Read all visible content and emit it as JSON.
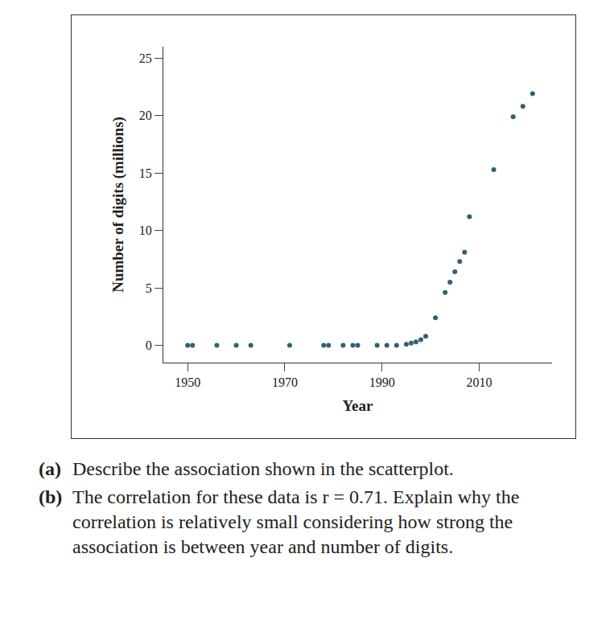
{
  "chart_data": {
    "type": "scatter",
    "xlabel": "Year",
    "ylabel": "Number of digits (millions)",
    "x": [
      1950,
      1951,
      1956,
      1960,
      1963,
      1971,
      1978,
      1979,
      1982,
      1984,
      1985,
      1989,
      1991,
      1993,
      1995,
      1996,
      1997,
      1998,
      1999,
      2001,
      2003,
      2004,
      2005,
      2006,
      2007,
      2008,
      2013,
      2017,
      2019,
      2021
    ],
    "values": [
      0,
      0,
      0,
      0,
      0,
      0,
      0,
      0,
      0,
      0,
      0,
      0,
      0,
      0,
      0.1,
      0.2,
      0.3,
      0.5,
      0.8,
      2.4,
      4.6,
      5.5,
      6.4,
      7.3,
      8.1,
      11.2,
      15.3,
      19.9,
      20.8,
      21.9
    ],
    "color": "#2f6273",
    "marker": "circle",
    "xlim": [
      1945,
      2025
    ],
    "xticks": [
      1950,
      1970,
      1990,
      2010
    ],
    "ylim": [
      -1.5,
      26
    ],
    "yticks": [
      0,
      5,
      10,
      15,
      20,
      25
    ],
    "grid": false
  },
  "questions": [
    {
      "label": "(a)",
      "text": "Describe the association shown in the scatterplot."
    },
    {
      "label": "(b)",
      "text": "The correlation for these data is r = 0.71. Explain why the correlation is relatively small considering how strong the association is between year and number of digits."
    }
  ]
}
